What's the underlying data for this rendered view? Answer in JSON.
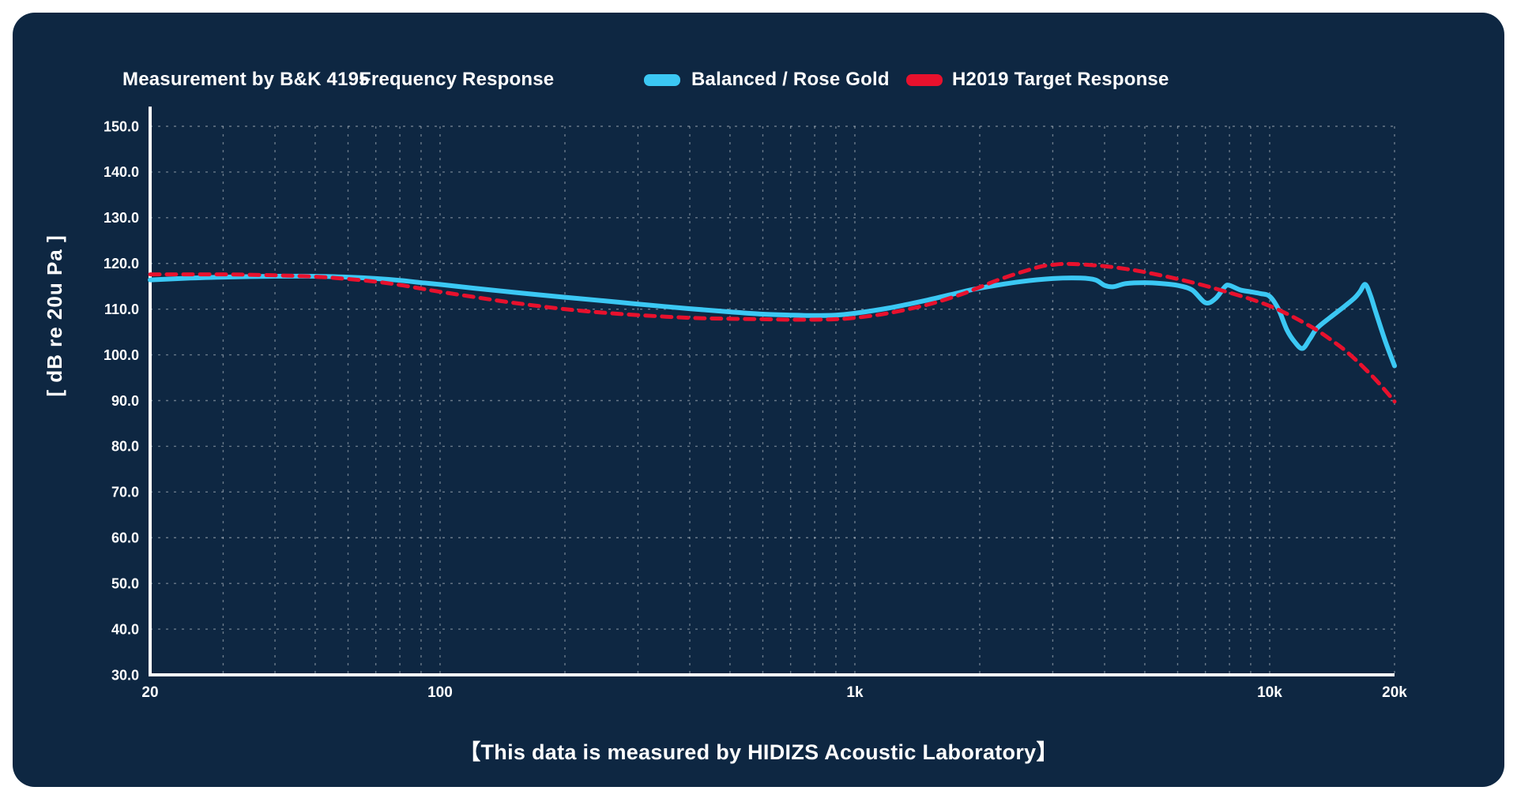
{
  "panel": {
    "background": "#0e2742",
    "page_background": "#ffffff"
  },
  "header": {
    "measurement_label": "Measurement by B&K 4195",
    "title": "Frequency Response",
    "legend": [
      {
        "label": "Balanced / Rose Gold",
        "color": "#3bc8f4",
        "style": "solid"
      },
      {
        "label": "H2019 Target Response",
        "color": "#e8112d",
        "style": "dashed"
      }
    ]
  },
  "footer": {
    "caption": "【This data is measured by HIDIZS Acoustic Laboratory】"
  },
  "chart_data": {
    "type": "line",
    "title": "Frequency Response",
    "xlabel": "",
    "ylabel": "[ dB re 20u Pa ]",
    "x_scale": "log",
    "xlim": [
      20,
      20000
    ],
    "ylim": [
      30,
      150
    ],
    "grid": {
      "on": true,
      "color": "rgba(255,255,255,0.38)",
      "dash": "3 7"
    },
    "axis_color": "#ffffff",
    "y_ticks": [
      30,
      40,
      50,
      60,
      70,
      80,
      90,
      100,
      110,
      120,
      130,
      140,
      150
    ],
    "y_tick_labels": [
      "30.0",
      "40.0",
      "50.0",
      "60.0",
      "70.0",
      "80.0",
      "90.0",
      "100.0",
      "110.0",
      "120.0",
      "130.0",
      "140.0",
      "150.0"
    ],
    "x_major_ticks": [
      {
        "value": 20,
        "label": "20"
      },
      {
        "value": 100,
        "label": "100"
      },
      {
        "value": 1000,
        "label": "1k"
      },
      {
        "value": 10000,
        "label": "10k"
      },
      {
        "value": 20000,
        "label": "20k"
      }
    ],
    "legend_position": "top-right",
    "series": [
      {
        "name": "Balanced / Rose Gold",
        "color": "#3bc8f4",
        "width": 6,
        "dash": null,
        "points": [
          [
            20,
            116.4
          ],
          [
            25,
            116.8
          ],
          [
            30,
            117.0
          ],
          [
            40,
            117.2
          ],
          [
            50,
            117.2
          ],
          [
            60,
            117.0
          ],
          [
            70,
            116.7
          ],
          [
            80,
            116.3
          ],
          [
            90,
            115.8
          ],
          [
            100,
            115.4
          ],
          [
            120,
            114.6
          ],
          [
            150,
            113.7
          ],
          [
            200,
            112.6
          ],
          [
            250,
            111.8
          ],
          [
            300,
            111.1
          ],
          [
            400,
            110.1
          ],
          [
            500,
            109.4
          ],
          [
            600,
            108.9
          ],
          [
            700,
            108.7
          ],
          [
            800,
            108.6
          ],
          [
            900,
            108.7
          ],
          [
            1000,
            109.1
          ],
          [
            1200,
            110.2
          ],
          [
            1500,
            112.0
          ],
          [
            1800,
            113.7
          ],
          [
            2000,
            114.6
          ],
          [
            2500,
            116.0
          ],
          [
            3000,
            116.7
          ],
          [
            3500,
            116.8
          ],
          [
            3800,
            116.4
          ],
          [
            4000,
            115.2
          ],
          [
            4200,
            114.9
          ],
          [
            4500,
            115.6
          ],
          [
            5000,
            115.8
          ],
          [
            5500,
            115.6
          ],
          [
            6000,
            115.2
          ],
          [
            6500,
            114.2
          ],
          [
            7000,
            111.4
          ],
          [
            7400,
            112.3
          ],
          [
            7800,
            114.9
          ],
          [
            8000,
            115.2
          ],
          [
            8500,
            114.2
          ],
          [
            9000,
            113.8
          ],
          [
            9500,
            113.4
          ],
          [
            10000,
            112.8
          ],
          [
            10500,
            110.0
          ],
          [
            11000,
            105.5
          ],
          [
            11500,
            102.8
          ],
          [
            12000,
            101.4
          ],
          [
            12500,
            103.5
          ],
          [
            13000,
            105.8
          ],
          [
            14000,
            108.2
          ],
          [
            15000,
            110.3
          ],
          [
            16000,
            112.4
          ],
          [
            16500,
            113.8
          ],
          [
            17000,
            115.4
          ],
          [
            17500,
            113.0
          ],
          [
            18000,
            109.5
          ],
          [
            19000,
            103.0
          ],
          [
            20000,
            97.6
          ]
        ]
      },
      {
        "name": "H2019 Target Response",
        "color": "#e8112d",
        "width": 5,
        "dash": "12 9",
        "points": [
          [
            20,
            117.6
          ],
          [
            30,
            117.6
          ],
          [
            40,
            117.4
          ],
          [
            50,
            117.1
          ],
          [
            60,
            116.6
          ],
          [
            70,
            116.0
          ],
          [
            80,
            115.3
          ],
          [
            90,
            114.5
          ],
          [
            100,
            113.8
          ],
          [
            120,
            112.7
          ],
          [
            150,
            111.4
          ],
          [
            200,
            110.0
          ],
          [
            250,
            109.2
          ],
          [
            300,
            108.7
          ],
          [
            400,
            108.1
          ],
          [
            500,
            107.9
          ],
          [
            600,
            107.8
          ],
          [
            700,
            107.7
          ],
          [
            800,
            107.7
          ],
          [
            900,
            107.8
          ],
          [
            1000,
            108.1
          ],
          [
            1200,
            109.1
          ],
          [
            1500,
            111.0
          ],
          [
            1800,
            113.2
          ],
          [
            2000,
            114.8
          ],
          [
            2200,
            116.3
          ],
          [
            2500,
            118.0
          ],
          [
            2800,
            119.3
          ],
          [
            3000,
            119.7
          ],
          [
            3200,
            119.9
          ],
          [
            3500,
            119.8
          ],
          [
            4000,
            119.4
          ],
          [
            4500,
            118.8
          ],
          [
            5000,
            118.1
          ],
          [
            6000,
            116.6
          ],
          [
            7000,
            115.1
          ],
          [
            8000,
            113.6
          ],
          [
            9000,
            112.2
          ],
          [
            10000,
            110.7
          ],
          [
            11000,
            109.0
          ],
          [
            12000,
            107.2
          ],
          [
            13000,
            105.4
          ],
          [
            14000,
            103.4
          ],
          [
            15000,
            101.4
          ],
          [
            16000,
            99.2
          ],
          [
            17000,
            96.9
          ],
          [
            18000,
            94.6
          ],
          [
            19000,
            92.2
          ],
          [
            20000,
            89.8
          ]
        ]
      }
    ]
  }
}
